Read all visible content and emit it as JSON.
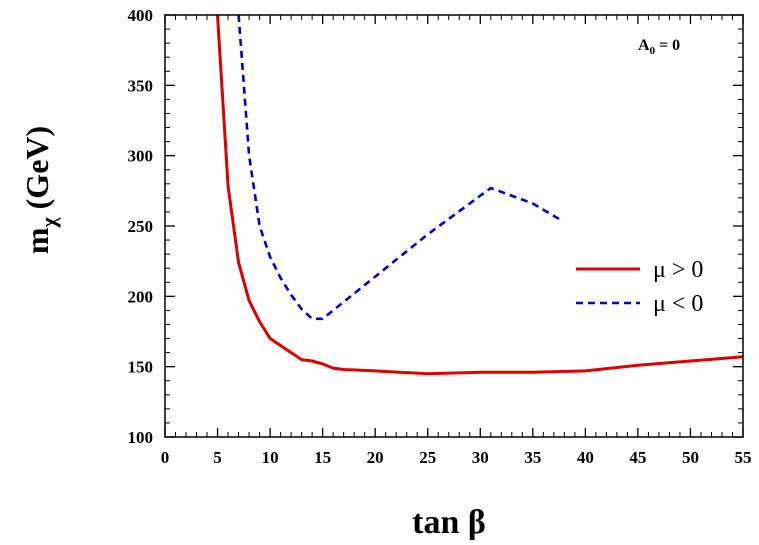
{
  "chart_data": {
    "type": "line",
    "title": "",
    "xlabel": "tan β",
    "ylabel": {
      "main": "m",
      "sub": "χ",
      "unit": " (GeV)"
    },
    "xlim": [
      0,
      55
    ],
    "ylim": [
      100,
      400
    ],
    "xticks": [
      0,
      5,
      10,
      15,
      20,
      25,
      30,
      35,
      40,
      45,
      50,
      55
    ],
    "yticks": [
      100,
      150,
      200,
      250,
      300,
      350,
      400
    ],
    "grid": false,
    "legend_position": "right",
    "annotation": {
      "main": "A",
      "sub": "0",
      "rest": " = 0"
    },
    "series": [
      {
        "name": "μ > 0",
        "color": "#dd0000",
        "style": "solid",
        "x": [
          5,
          6,
          7,
          8,
          9,
          10,
          11,
          12,
          13,
          14,
          15,
          16,
          17,
          20,
          25,
          30,
          35,
          40,
          45,
          50,
          55
        ],
        "y": [
          400,
          278,
          224,
          197,
          182,
          170,
          165,
          160,
          155,
          154,
          152,
          149,
          148,
          147,
          145,
          146,
          146,
          147,
          151,
          154,
          157
        ]
      },
      {
        "name": "μ < 0",
        "color": "#0000cc",
        "style": "dashed",
        "x": [
          7,
          8,
          9,
          10,
          11,
          12,
          13,
          14,
          15,
          20,
          25,
          31,
          35,
          37.5
        ],
        "y": [
          400,
          300,
          250,
          228,
          213,
          201,
          191,
          184,
          184,
          214,
          244,
          277,
          266,
          255
        ]
      }
    ]
  }
}
